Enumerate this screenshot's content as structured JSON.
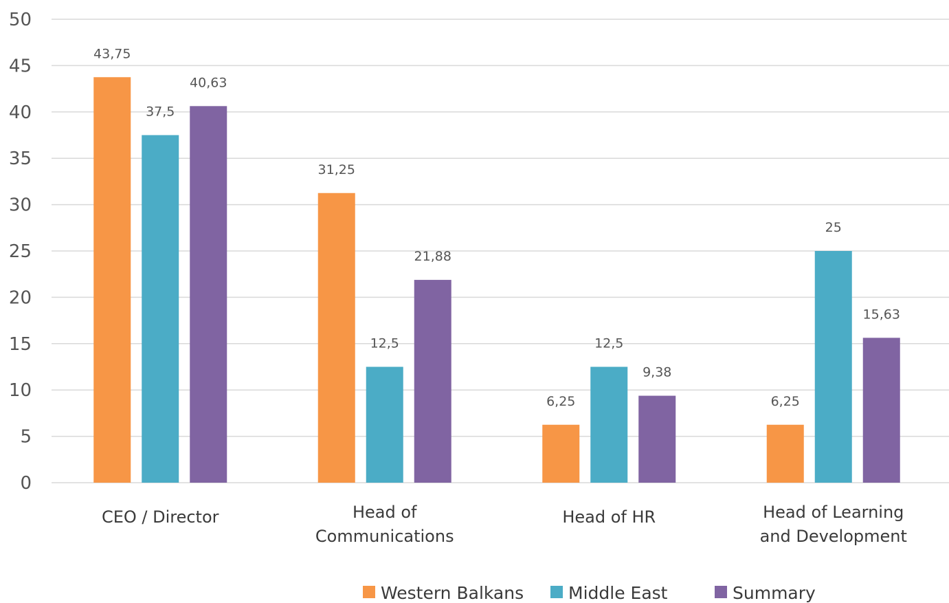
{
  "chart_data": {
    "type": "bar",
    "categories": [
      [
        "CEO / Director"
      ],
      [
        "Head of",
        "Communications"
      ],
      [
        "Head of HR"
      ],
      [
        "Head of Learning",
        "and Development"
      ]
    ],
    "series": [
      {
        "name": "Western Balkans",
        "color": "#F79646",
        "values": [
          43.75,
          31.25,
          6.25,
          6.25
        ],
        "labels": [
          "43,75",
          "31,25",
          "6,25",
          "6,25"
        ]
      },
      {
        "name": "Middle East",
        "color": "#4BACC6",
        "values": [
          37.5,
          12.5,
          12.5,
          25
        ],
        "labels": [
          "37,5",
          "12,5",
          "12,5",
          "25"
        ]
      },
      {
        "name": "Summary",
        "color": "#8064A2",
        "values": [
          40.63,
          21.88,
          9.38,
          15.63
        ],
        "labels": [
          "40,63",
          "21,88",
          "9,38",
          "15,63"
        ]
      }
    ],
    "ylim": [
      0,
      50
    ],
    "yticks": [
      0,
      5,
      10,
      15,
      20,
      25,
      30,
      35,
      40,
      45,
      50
    ],
    "grid": true,
    "legend": "bottom"
  }
}
